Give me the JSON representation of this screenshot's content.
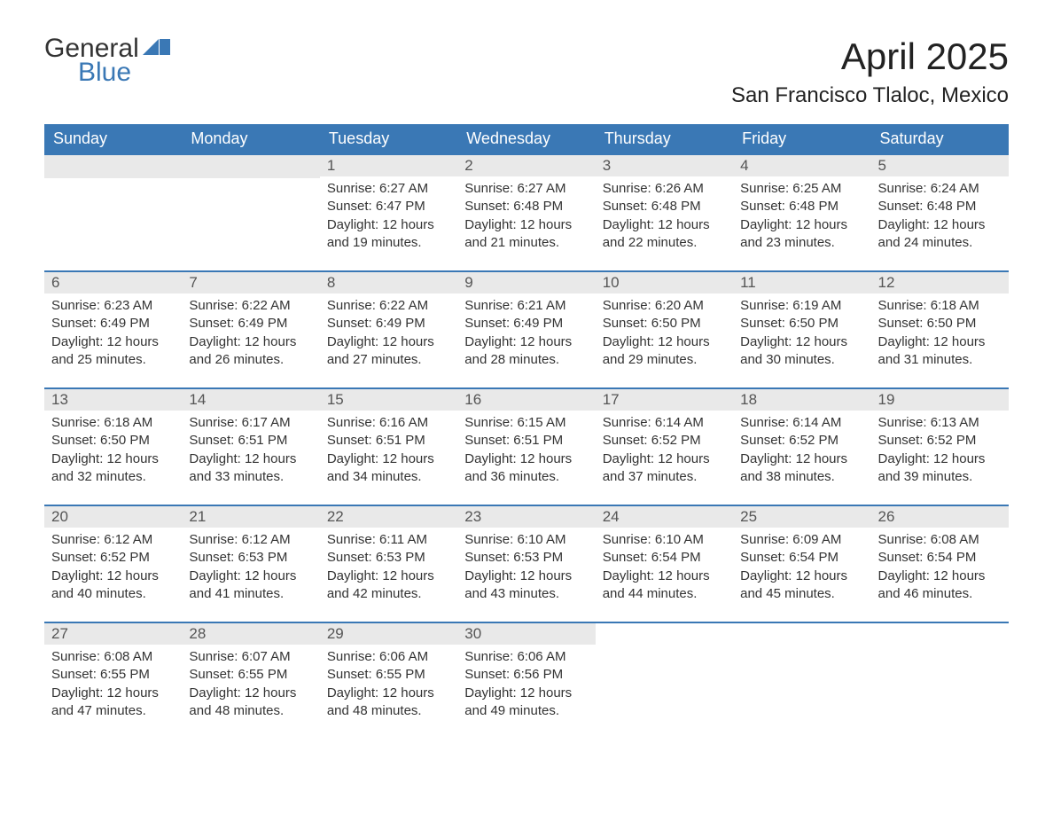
{
  "branding": {
    "logo_word1": "General",
    "logo_word2": "Blue",
    "logo_word1_color": "#333333",
    "logo_word2_color": "#3a78b5",
    "logo_mark_color": "#3a78b5"
  },
  "header": {
    "month_title": "April 2025",
    "location": "San Francisco Tlaloc, Mexico"
  },
  "style": {
    "header_bg": "#3a78b5",
    "header_fg": "#ffffff",
    "daynum_bg": "#e9e9e9",
    "daynum_fg": "#555555",
    "text_color": "#333333",
    "week_border_color": "#3a78b5",
    "page_bg": "#ffffff",
    "font_family": "Segoe UI, Arial, sans-serif",
    "month_title_fontsize": 42,
    "location_fontsize": 24,
    "dayheader_fontsize": 18,
    "body_fontsize": 15
  },
  "calendar": {
    "columns": [
      "Sunday",
      "Monday",
      "Tuesday",
      "Wednesday",
      "Thursday",
      "Friday",
      "Saturday"
    ],
    "weeks": [
      [
        null,
        null,
        {
          "n": "1",
          "sunrise": "6:27 AM",
          "sunset": "6:47 PM",
          "daylight": "12 hours and 19 minutes."
        },
        {
          "n": "2",
          "sunrise": "6:27 AM",
          "sunset": "6:48 PM",
          "daylight": "12 hours and 21 minutes."
        },
        {
          "n": "3",
          "sunrise": "6:26 AM",
          "sunset": "6:48 PM",
          "daylight": "12 hours and 22 minutes."
        },
        {
          "n": "4",
          "sunrise": "6:25 AM",
          "sunset": "6:48 PM",
          "daylight": "12 hours and 23 minutes."
        },
        {
          "n": "5",
          "sunrise": "6:24 AM",
          "sunset": "6:48 PM",
          "daylight": "12 hours and 24 minutes."
        }
      ],
      [
        {
          "n": "6",
          "sunrise": "6:23 AM",
          "sunset": "6:49 PM",
          "daylight": "12 hours and 25 minutes."
        },
        {
          "n": "7",
          "sunrise": "6:22 AM",
          "sunset": "6:49 PM",
          "daylight": "12 hours and 26 minutes."
        },
        {
          "n": "8",
          "sunrise": "6:22 AM",
          "sunset": "6:49 PM",
          "daylight": "12 hours and 27 minutes."
        },
        {
          "n": "9",
          "sunrise": "6:21 AM",
          "sunset": "6:49 PM",
          "daylight": "12 hours and 28 minutes."
        },
        {
          "n": "10",
          "sunrise": "6:20 AM",
          "sunset": "6:50 PM",
          "daylight": "12 hours and 29 minutes."
        },
        {
          "n": "11",
          "sunrise": "6:19 AM",
          "sunset": "6:50 PM",
          "daylight": "12 hours and 30 minutes."
        },
        {
          "n": "12",
          "sunrise": "6:18 AM",
          "sunset": "6:50 PM",
          "daylight": "12 hours and 31 minutes."
        }
      ],
      [
        {
          "n": "13",
          "sunrise": "6:18 AM",
          "sunset": "6:50 PM",
          "daylight": "12 hours and 32 minutes."
        },
        {
          "n": "14",
          "sunrise": "6:17 AM",
          "sunset": "6:51 PM",
          "daylight": "12 hours and 33 minutes."
        },
        {
          "n": "15",
          "sunrise": "6:16 AM",
          "sunset": "6:51 PM",
          "daylight": "12 hours and 34 minutes."
        },
        {
          "n": "16",
          "sunrise": "6:15 AM",
          "sunset": "6:51 PM",
          "daylight": "12 hours and 36 minutes."
        },
        {
          "n": "17",
          "sunrise": "6:14 AM",
          "sunset": "6:52 PM",
          "daylight": "12 hours and 37 minutes."
        },
        {
          "n": "18",
          "sunrise": "6:14 AM",
          "sunset": "6:52 PM",
          "daylight": "12 hours and 38 minutes."
        },
        {
          "n": "19",
          "sunrise": "6:13 AM",
          "sunset": "6:52 PM",
          "daylight": "12 hours and 39 minutes."
        }
      ],
      [
        {
          "n": "20",
          "sunrise": "6:12 AM",
          "sunset": "6:52 PM",
          "daylight": "12 hours and 40 minutes."
        },
        {
          "n": "21",
          "sunrise": "6:12 AM",
          "sunset": "6:53 PM",
          "daylight": "12 hours and 41 minutes."
        },
        {
          "n": "22",
          "sunrise": "6:11 AM",
          "sunset": "6:53 PM",
          "daylight": "12 hours and 42 minutes."
        },
        {
          "n": "23",
          "sunrise": "6:10 AM",
          "sunset": "6:53 PM",
          "daylight": "12 hours and 43 minutes."
        },
        {
          "n": "24",
          "sunrise": "6:10 AM",
          "sunset": "6:54 PM",
          "daylight": "12 hours and 44 minutes."
        },
        {
          "n": "25",
          "sunrise": "6:09 AM",
          "sunset": "6:54 PM",
          "daylight": "12 hours and 45 minutes."
        },
        {
          "n": "26",
          "sunrise": "6:08 AM",
          "sunset": "6:54 PM",
          "daylight": "12 hours and 46 minutes."
        }
      ],
      [
        {
          "n": "27",
          "sunrise": "6:08 AM",
          "sunset": "6:55 PM",
          "daylight": "12 hours and 47 minutes."
        },
        {
          "n": "28",
          "sunrise": "6:07 AM",
          "sunset": "6:55 PM",
          "daylight": "12 hours and 48 minutes."
        },
        {
          "n": "29",
          "sunrise": "6:06 AM",
          "sunset": "6:55 PM",
          "daylight": "12 hours and 48 minutes."
        },
        {
          "n": "30",
          "sunrise": "6:06 AM",
          "sunset": "6:56 PM",
          "daylight": "12 hours and 49 minutes."
        },
        null,
        null,
        null
      ]
    ],
    "labels": {
      "sunrise_prefix": "Sunrise: ",
      "sunset_prefix": "Sunset: ",
      "daylight_prefix": "Daylight: "
    }
  }
}
